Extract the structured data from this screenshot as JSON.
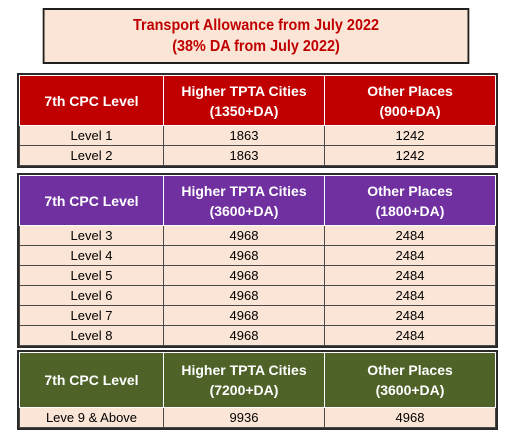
{
  "title": {
    "line1": "Transport Allowance from July 2022",
    "line2": "(38% DA from July 2022)"
  },
  "tables": [
    {
      "header": {
        "col1": "7th CPC Level",
        "col2_line1": "Higher TPTA Cities",
        "col2_line2": "(1350+DA)",
        "col3_line1": "Other Places",
        "col3_line2": "(900+DA)"
      },
      "rows": [
        {
          "level": "Level 1",
          "higher": "1863",
          "other": "1242"
        },
        {
          "level": "Level 2",
          "higher": "1863",
          "other": "1242"
        }
      ],
      "header_color": "#c00000"
    },
    {
      "header": {
        "col1": "7th CPC Level",
        "col2_line1": "Higher TPTA Cities",
        "col2_line2": "(3600+DA)",
        "col3_line1": "Other Places",
        "col3_line2": "(1800+DA)"
      },
      "rows": [
        {
          "level": "Level 3",
          "higher": "4968",
          "other": "2484"
        },
        {
          "level": "Level 4",
          "higher": "4968",
          "other": "2484"
        },
        {
          "level": "Level 5",
          "higher": "4968",
          "other": "2484"
        },
        {
          "level": "Level 6",
          "higher": "4968",
          "other": "2484"
        },
        {
          "level": "Level 7",
          "higher": "4968",
          "other": "2484"
        },
        {
          "level": "Level 8",
          "higher": "4968",
          "other": "2484"
        }
      ],
      "header_color": "#7030a0"
    },
    {
      "header": {
        "col1": "7th CPC Level",
        "col2_line1": "Higher TPTA Cities",
        "col2_line2": "(7200+DA)",
        "col3_line1": "Other Places",
        "col3_line2": "(3600+DA)"
      },
      "rows": [
        {
          "level": "Leve 9 & Above",
          "higher": "9936",
          "other": "4968"
        }
      ],
      "header_color": "#4f6228"
    }
  ],
  "cell_background": "#fbe5d6"
}
